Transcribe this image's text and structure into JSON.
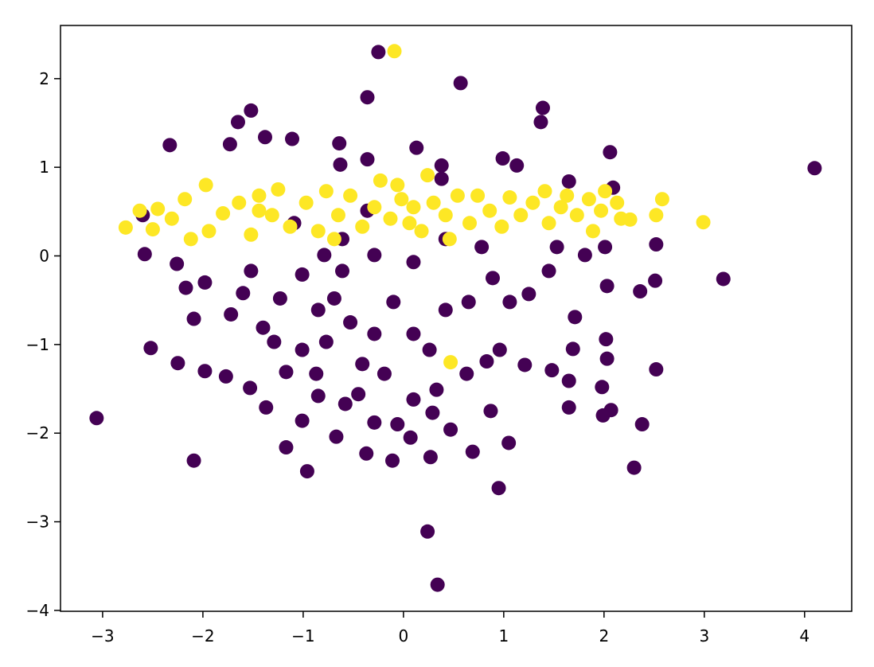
{
  "chart_data": {
    "type": "scatter",
    "xlim": [
      -3.42,
      4.47
    ],
    "ylim": [
      -4.01,
      2.6
    ],
    "xticks": [
      {
        "value": -3,
        "label": "−3"
      },
      {
        "value": -2,
        "label": "−2"
      },
      {
        "value": -1,
        "label": "−1"
      },
      0,
      1,
      2,
      3,
      4
    ],
    "yticks": [
      {
        "value": -4,
        "label": "−4"
      },
      {
        "value": -3,
        "label": "−3"
      },
      {
        "value": -2,
        "label": "−2"
      },
      {
        "value": -1,
        "label": "−1"
      },
      0,
      1,
      2
    ],
    "series": [
      {
        "color": "#440154",
        "x": [
          -3.06,
          4.1,
          3.19,
          0.34,
          0.24,
          -0.25,
          0.57,
          -0.36,
          1.39,
          1.37,
          -1.52,
          -1.65,
          -2.33,
          -1.73,
          -1.38,
          -1.11,
          2.06,
          0.13,
          0.95,
          2.3,
          2.38,
          -2.09,
          -0.96,
          -2.52,
          -2.25,
          2.52,
          2.07,
          1.05,
          -0.37,
          -0.11,
          0.27,
          0.69,
          0.07,
          -1.17,
          2.51,
          2.36,
          2.52,
          2.03,
          -2.58,
          -2.26,
          -1.98,
          -2.17,
          -2.09,
          -1.98,
          -1.77,
          -1.53,
          -1.37,
          -1.01,
          -0.67,
          -0.58,
          -0.29,
          -0.06,
          0.29,
          0.47,
          0.87,
          1.65,
          1.99,
          1.98,
          1.65,
          1.48,
          2.03,
          2.02,
          1.71,
          1.69,
          1.21,
          0.83,
          0.63,
          0.33,
          0.1,
          -0.19,
          -0.45,
          -0.87,
          -1.17,
          -1.29,
          -1.4,
          -1.6,
          -1.72,
          -1.52,
          -1.23,
          -1.01,
          -0.85,
          -0.69,
          -0.53,
          -0.77,
          -1.01,
          -0.29,
          -0.1,
          0.1,
          0.26,
          0.42,
          0.65,
          0.89,
          1.06,
          1.25,
          1.45,
          1.53,
          1.81,
          2.01,
          0.78,
          0.42,
          0.1,
          -0.29,
          -0.79,
          -1.09,
          -0.36,
          -0.64,
          -0.63,
          -0.36,
          0.99,
          1.13,
          1.65,
          0.38,
          0.38,
          2.09,
          -2.6,
          -0.41,
          0.96,
          -0.85,
          -0.61,
          -0.61
        ],
        "values": [
          -1.83,
          0.99,
          -0.26,
          -3.71,
          -3.11,
          2.3,
          1.95,
          1.79,
          1.67,
          1.51,
          1.64,
          1.51,
          1.25,
          1.26,
          1.34,
          1.32,
          1.17,
          1.22,
          -2.62,
          -2.39,
          -1.9,
          -2.31,
          -2.43,
          -1.04,
          -1.21,
          -1.28,
          -1.74,
          -2.11,
          -2.23,
          -2.31,
          -2.27,
          -2.21,
          -2.05,
          -2.16,
          -0.28,
          -0.4,
          0.13,
          -0.34,
          0.02,
          -0.09,
          -0.3,
          -0.36,
          -0.71,
          -1.3,
          -1.36,
          -1.49,
          -1.71,
          -1.86,
          -2.04,
          -1.67,
          -1.88,
          -1.9,
          -1.77,
          -1.96,
          -1.75,
          -1.71,
          -1.8,
          -1.48,
          -1.41,
          -1.29,
          -1.16,
          -0.94,
          -0.69,
          -1.05,
          -1.23,
          -1.19,
          -1.33,
          -1.51,
          -1.62,
          -1.33,
          -1.56,
          -1.33,
          -1.31,
          -0.97,
          -0.81,
          -0.42,
          -0.66,
          -0.17,
          -0.48,
          -0.21,
          -0.61,
          -0.48,
          -0.75,
          -0.97,
          -1.06,
          -0.88,
          -0.52,
          -0.88,
          -1.06,
          -0.61,
          -0.52,
          -0.25,
          -0.52,
          -0.43,
          -0.17,
          0.1,
          0.01,
          0.1,
          0.1,
          0.19,
          -0.07,
          0.01,
          0.01,
          0.37,
          0.51,
          1.27,
          1.03,
          1.09,
          1.1,
          1.02,
          0.84,
          1.02,
          0.87,
          0.77,
          0.46,
          -1.22,
          -1.06,
          -1.58,
          0.19,
          -0.17
        ]
      },
      {
        "color": "#fde725",
        "x": [
          -0.09,
          -2.77,
          -2.63,
          -2.5,
          -2.45,
          -2.31,
          -2.18,
          -2.12,
          -1.97,
          -1.94,
          -1.8,
          -1.64,
          -1.52,
          -1.44,
          -1.31,
          -1.25,
          -1.13,
          -0.97,
          -0.85,
          -0.77,
          -0.65,
          -0.53,
          -0.41,
          -0.23,
          -0.29,
          -0.13,
          -0.02,
          0.06,
          0.1,
          0.24,
          0.18,
          0.3,
          0.42,
          0.54,
          0.66,
          0.74,
          0.86,
          0.98,
          1.06,
          1.17,
          1.29,
          1.41,
          1.45,
          1.57,
          1.63,
          1.73,
          1.85,
          1.89,
          1.97,
          2.01,
          2.13,
          2.17,
          2.26,
          2.52,
          2.58,
          2.99,
          0.47,
          -0.06,
          -1.44,
          -0.69,
          0.46
        ],
        "values": [
          2.31,
          0.32,
          0.51,
          0.3,
          0.53,
          0.42,
          0.64,
          0.19,
          0.8,
          0.28,
          0.48,
          0.6,
          0.24,
          0.68,
          0.46,
          0.75,
          0.33,
          0.6,
          0.28,
          0.73,
          0.46,
          0.68,
          0.33,
          0.85,
          0.55,
          0.42,
          0.64,
          0.37,
          0.55,
          0.91,
          0.28,
          0.6,
          0.46,
          0.68,
          0.37,
          0.68,
          0.51,
          0.33,
          0.66,
          0.46,
          0.6,
          0.73,
          0.37,
          0.55,
          0.68,
          0.46,
          0.64,
          0.28,
          0.51,
          0.73,
          0.6,
          0.42,
          0.41,
          0.46,
          0.64,
          0.38,
          -1.2,
          0.8,
          0.51,
          0.19,
          0.19
        ]
      }
    ]
  }
}
